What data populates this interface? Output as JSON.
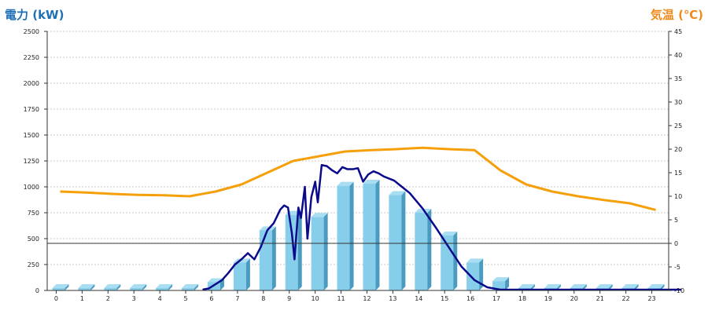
{
  "chart_data": {
    "type": "bar",
    "left_title": "電力 (kW)",
    "right_title": "気温 (℃)",
    "colors": {
      "left_title": "#1f6fb5",
      "right_title": "#f08a1c",
      "bar_face": "#87ceeb",
      "bar_side": "#4a9bbf",
      "bar_top": "#a9def2",
      "power_line": "#0a0a8c",
      "temp_line": "#f5a00a",
      "grid": "#c8c8c8"
    },
    "left_axis": {
      "min": 0,
      "max": 2500,
      "ticks": [
        "0",
        "250",
        "500",
        "750",
        "1000",
        "1250",
        "1500",
        "1750",
        "2000",
        "2250",
        "2500"
      ]
    },
    "right_axis": {
      "min": -10,
      "max": 45,
      "ticks": [
        "-10",
        "-5",
        "0",
        "5",
        "10",
        "15",
        "20",
        "25",
        "30",
        "35",
        "40",
        "45"
      ]
    },
    "categories": [
      "0",
      "1",
      "2",
      "3",
      "4",
      "5",
      "6",
      "7",
      "8",
      "9",
      "10",
      "11",
      "12",
      "13",
      "14",
      "15",
      "16",
      "17",
      "18",
      "19",
      "20",
      "21",
      "22",
      "23"
    ],
    "series": [
      {
        "kind": "bar",
        "axis": "left",
        "values": [
          0,
          0,
          0,
          0,
          0,
          0,
          80,
          270,
          580,
          730,
          710,
          1010,
          1030,
          920,
          750,
          530,
          270,
          90,
          0,
          0,
          0,
          0,
          0,
          0
        ]
      },
      {
        "kind": "line",
        "axis": "left",
        "x": [
          5.5,
          5.75,
          6.0,
          6.25,
          6.5,
          6.75,
          7.0,
          7.25,
          7.5,
          7.75,
          8.0,
          8.25,
          8.5,
          8.65,
          8.8,
          8.95,
          9.05,
          9.2,
          9.3,
          9.45,
          9.55,
          9.7,
          9.85,
          9.95,
          10.1,
          10.3,
          10.5,
          10.7,
          10.9,
          11.1,
          11.3,
          11.5,
          11.7,
          11.9,
          12.1,
          12.3,
          12.5,
          12.7,
          12.9,
          13.1,
          13.5,
          14.0,
          14.5,
          15.0,
          15.5,
          16.0,
          16.5,
          17.0,
          17.2,
          24.0
        ],
        "y": [
          0,
          20,
          60,
          100,
          170,
          250,
          300,
          360,
          300,
          420,
          580,
          650,
          780,
          820,
          800,
          550,
          300,
          800,
          700,
          1000,
          500,
          900,
          1050,
          850,
          1210,
          1200,
          1160,
          1130,
          1190,
          1170,
          1170,
          1180,
          1050,
          1120,
          1150,
          1130,
          1100,
          1080,
          1060,
          1020,
          940,
          790,
          610,
          420,
          230,
          100,
          30,
          0,
          0,
          0
        ]
      },
      {
        "kind": "line",
        "axis": "right",
        "values": [
          11,
          10.8,
          10.5,
          10.3,
          10.2,
          10,
          11,
          12.5,
          15,
          17.5,
          18.5,
          19.5,
          19.8,
          20,
          20.3,
          20,
          19.8,
          15.5,
          12.5,
          11,
          10,
          9.2,
          8.5,
          7.1
        ]
      }
    ],
    "reference_line_right": 0
  }
}
